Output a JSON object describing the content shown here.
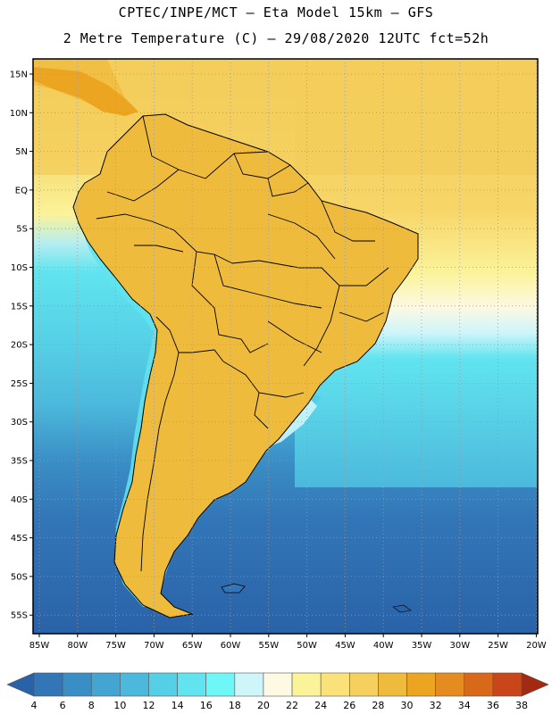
{
  "header": {
    "line1": "CPTEC/INPE/MCT –  Eta Model 15km – GFS",
    "line2": "2 Metre Temperature (C) – 29/08/2020 12UTC fct=52h"
  },
  "map": {
    "variable": "2 Metre Temperature",
    "units": "C",
    "lat_ticks": [
      "15N",
      "10N",
      "5N",
      "EQ",
      "5S",
      "10S",
      "15S",
      "20S",
      "25S",
      "30S",
      "35S",
      "40S",
      "45S",
      "50S",
      "55S"
    ],
    "lon_ticks": [
      "85W",
      "80W",
      "75W",
      "70W",
      "65W",
      "60W",
      "55W",
      "50W",
      "45W",
      "40W",
      "35W",
      "30W",
      "25W",
      "20W"
    ]
  },
  "colorbar": {
    "labels": [
      "4",
      "6",
      "8",
      "10",
      "12",
      "14",
      "16",
      "18",
      "20",
      "22",
      "24",
      "26",
      "28",
      "30",
      "32",
      "34",
      "36",
      "38"
    ],
    "colors": [
      "#2a62a8",
      "#3276b7",
      "#3a8ec6",
      "#44a4d2",
      "#4cb9dc",
      "#55cfe6",
      "#61e4ef",
      "#6ff7f7",
      "#cdf5fa",
      "#fdf9e3",
      "#fbf39a",
      "#fae17a",
      "#f5d05e",
      "#efbb3d",
      "#eca521",
      "#e48c1f",
      "#d9691a",
      "#c8461a",
      "#a32a10"
    ]
  }
}
